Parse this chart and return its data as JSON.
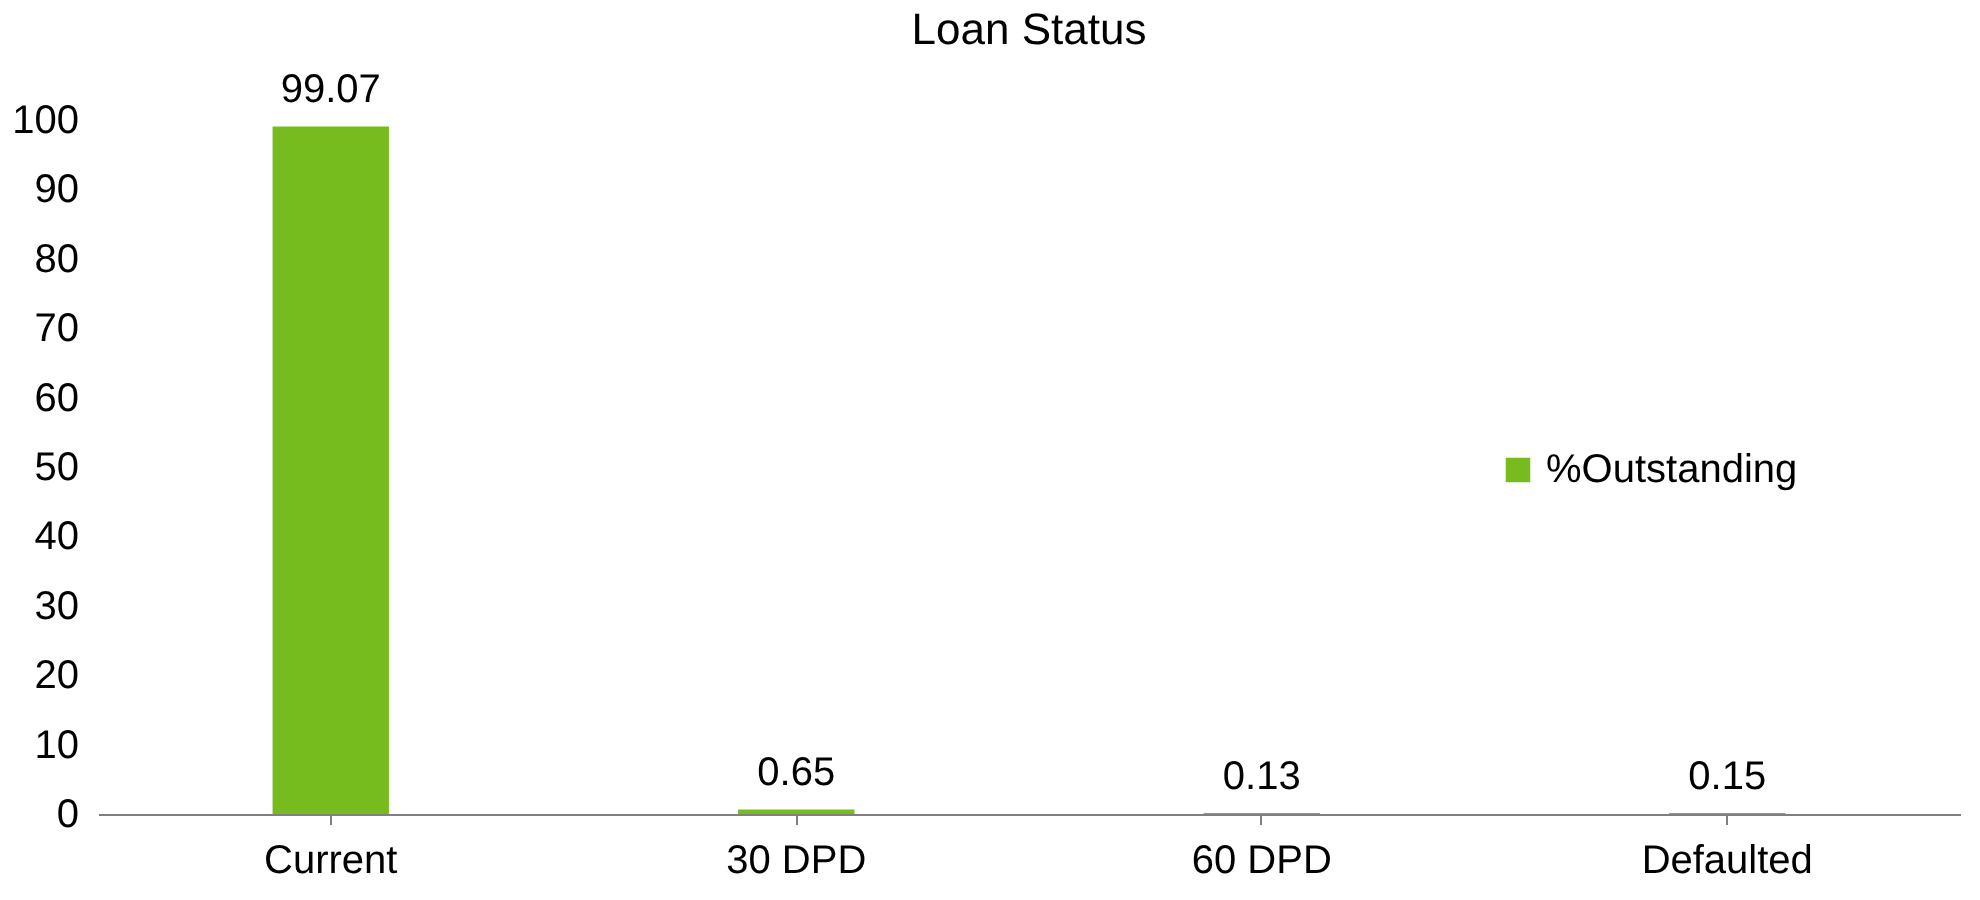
{
  "chart_data": {
    "type": "bar",
    "title": "Loan Status",
    "categories": [
      "Current",
      "30 DPD",
      "60 DPD",
      "Defaulted"
    ],
    "series": [
      {
        "name": "%Outstanding",
        "color": "#77bc1f",
        "values": [
          99.07,
          0.65,
          0.13,
          0.15
        ]
      }
    ],
    "ylim": [
      0,
      100
    ],
    "yticks": [
      0,
      10,
      20,
      30,
      40,
      50,
      60,
      70,
      80,
      90,
      100
    ],
    "data_labels": true,
    "legend": "right",
    "grid": false
  }
}
